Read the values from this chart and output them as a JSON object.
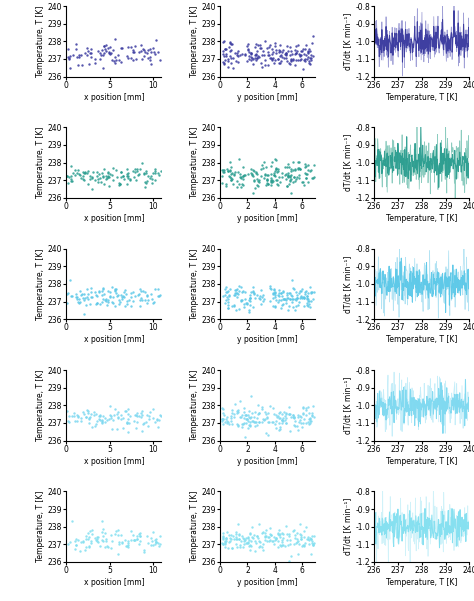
{
  "nrows": 5,
  "ncols": 3,
  "colors": [
    "#3a3a9f",
    "#2a9d8f",
    "#5bc8e8",
    "#7dd8f0",
    "#82dff0"
  ],
  "light_colors": [
    "#8888cc",
    "#70c0b0",
    "#a0dcf0",
    "#b8eaf8",
    "#c5eff8"
  ],
  "xlims_col0": [
    0,
    11
  ],
  "xlims_col1": [
    0,
    7
  ],
  "xlims_col2": [
    236,
    240
  ],
  "ylim_scatter": [
    236,
    240
  ],
  "ylim_line": [
    -1.2,
    -0.8
  ],
  "xticks_col0": [
    0,
    5,
    10
  ],
  "xticks_col1": [
    0,
    2,
    4,
    6
  ],
  "xticks_col2": [
    236,
    237,
    238,
    239,
    240
  ],
  "yticks_scatter": [
    236,
    237,
    238,
    239,
    240
  ],
  "yticks_line": [
    -1.2,
    -1.1,
    -1.0,
    -0.9,
    -0.8
  ],
  "xlabel_col0": "x position [mm]",
  "xlabel_col1": "y position [mm]",
  "xlabel_col2": "Temperature, T [K]",
  "ylabel_scatter": "Temperature, T [K]",
  "ylabel_line": "dT/dt [K min⁻¹]",
  "figsize": [
    4.74,
    6.01
  ],
  "dpi": 100,
  "label_fontsize": 5.5,
  "tick_fontsize": 5.5
}
